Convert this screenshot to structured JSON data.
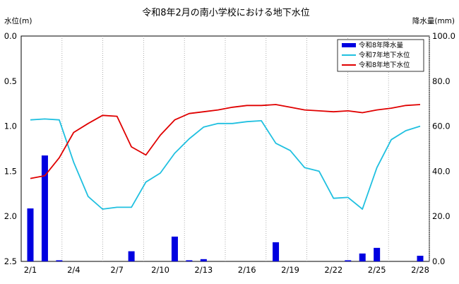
{
  "chart_data": {
    "type": "bar+line",
    "title": "令和8年2月の南小学校における地下水位",
    "ylabel_left": "水位(m)",
    "ylabel_right": "降水量(mm)",
    "y_left_range": [
      0.0,
      2.5
    ],
    "y_left_inverted": true,
    "y_left_ticks": [
      "0.0",
      "0.5",
      "1.0",
      "1.5",
      "2.0",
      "2.5"
    ],
    "y_right_range": [
      0,
      100
    ],
    "y_right_ticks": [
      "0.0",
      "20.0",
      "40.0",
      "60.0",
      "80.0",
      "100.0"
    ],
    "x_tick_labels": [
      "2/1",
      "2/4",
      "2/7",
      "2/10",
      "2/13",
      "2/16",
      "2/19",
      "2/22",
      "2/25",
      "2/28"
    ],
    "days": [
      1,
      2,
      3,
      4,
      5,
      6,
      7,
      8,
      9,
      10,
      11,
      12,
      13,
      14,
      15,
      16,
      17,
      18,
      19,
      20,
      21,
      22,
      23,
      24,
      25,
      26,
      27,
      28
    ],
    "grid": "vertical-dotted",
    "legend_position": "top-right",
    "series": [
      {
        "name": "令和8年降水量",
        "kind": "bar",
        "axis": "right",
        "color": "#0000e0",
        "values": [
          23.5,
          47,
          0.5,
          0,
          0,
          0,
          0,
          4.5,
          0,
          0,
          11,
          0.5,
          1,
          0,
          0,
          0,
          0,
          8.5,
          0,
          0,
          0,
          0,
          0.5,
          3.5,
          6,
          0,
          0,
          2.5
        ]
      },
      {
        "name": "令和7年地下水位",
        "kind": "line",
        "axis": "left",
        "color": "#20c0e0",
        "values": [
          0.93,
          0.92,
          0.93,
          1.4,
          1.78,
          1.92,
          1.9,
          1.9,
          1.62,
          1.52,
          1.3,
          1.14,
          1.01,
          0.97,
          0.97,
          0.95,
          0.94,
          1.19,
          1.27,
          1.46,
          1.5,
          1.8,
          1.79,
          1.92,
          1.46,
          1.15,
          1.05,
          1.0
        ]
      },
      {
        "name": "令和8年地下水位",
        "kind": "line",
        "axis": "left",
        "color": "#e00000",
        "values": [
          1.58,
          1.55,
          1.35,
          1.07,
          0.97,
          0.88,
          0.89,
          1.23,
          1.32,
          1.1,
          0.93,
          0.86,
          0.84,
          0.82,
          0.79,
          0.77,
          0.77,
          0.76,
          0.79,
          0.82,
          0.83,
          0.84,
          0.83,
          0.85,
          0.82,
          0.8,
          0.77,
          0.76
        ]
      }
    ]
  }
}
